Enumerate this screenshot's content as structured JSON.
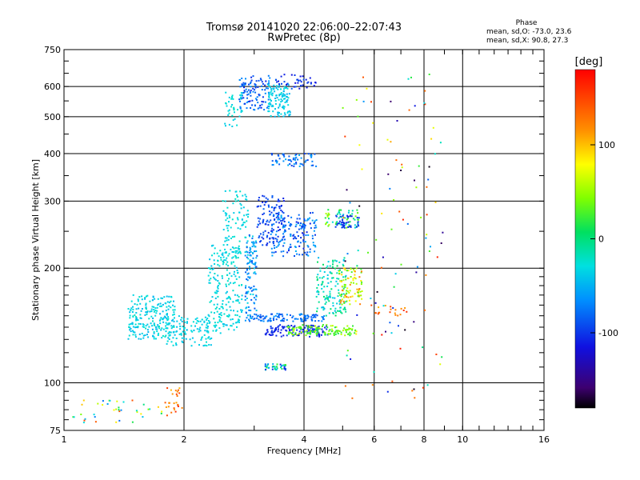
{
  "chart_data": {
    "type": "scatter",
    "title": "Tromsø 20141020 22:06:00–22:07:43",
    "subtitle": "RwPretec (8p)",
    "xlabel": "Frequency [MHz]",
    "ylabel": "Stationary phase Virtual Height [km]",
    "x_scale": "log",
    "y_scale": "log",
    "xlim": [
      1,
      16
    ],
    "ylim": [
      75,
      750
    ],
    "x_ticks": [
      1,
      2,
      4,
      6,
      8,
      10,
      16
    ],
    "x_tick_labels": [
      "1",
      "2",
      "4",
      "6",
      "8",
      "10",
      "16"
    ],
    "y_ticks": [
      75,
      100,
      200,
      300,
      400,
      500,
      600,
      750
    ],
    "y_tick_labels": [
      "75",
      "100",
      "200",
      "300",
      "400",
      "500",
      "600",
      "750"
    ],
    "grid": true,
    "colorbar": {
      "label": "[deg]",
      "range": [
        -180,
        180
      ],
      "ticks": [
        100,
        0,
        -100
      ],
      "tick_labels": [
        "100",
        "0",
        "-100"
      ]
    },
    "legend": {
      "heading": "Phase",
      "line_o": "mean, sd,O: -73.0, 23.6",
      "line_x": "mean, sd,X:  90.8, 27.3"
    },
    "clusters": [
      {
        "x": [
          1.45,
          1.9
        ],
        "y": [
          130,
          170
        ],
        "phase": [
          -50,
          -20
        ],
        "n": 220
      },
      {
        "x": [
          1.8,
          2.35
        ],
        "y": [
          125,
          150
        ],
        "phase": [
          -45,
          -25
        ],
        "n": 120
      },
      {
        "x": [
          2.3,
          2.8
        ],
        "y": [
          135,
          230
        ],
        "phase": [
          -45,
          -20
        ],
        "n": 200
      },
      {
        "x": [
          2.5,
          2.9
        ],
        "y": [
          210,
          320
        ],
        "phase": [
          -40,
          -20
        ],
        "n": 100
      },
      {
        "x": [
          2.85,
          3.05
        ],
        "y": [
          145,
          245
        ],
        "phase": [
          -90,
          -30
        ],
        "n": 120
      },
      {
        "x": [
          3.05,
          3.6
        ],
        "y": [
          230,
          310
        ],
        "phase": [
          -110,
          -80
        ],
        "n": 120
      },
      {
        "x": [
          3.3,
          4.3
        ],
        "y": [
          215,
          280
        ],
        "phase": [
          -110,
          -50
        ],
        "n": 160
      },
      {
        "x": [
          3.2,
          4.6
        ],
        "y": [
          132,
          142
        ],
        "phase": [
          -115,
          -95
        ],
        "n": 120
      },
      {
        "x": [
          3.6,
          5.4
        ],
        "y": [
          133,
          142
        ],
        "phase": [
          10,
          60
        ],
        "n": 120
      },
      {
        "x": [
          3.0,
          4.5
        ],
        "y": [
          145,
          152
        ],
        "phase": [
          -95,
          -60
        ],
        "n": 100
      },
      {
        "x": [
          4.3,
          5.1
        ],
        "y": [
          150,
          215
        ],
        "phase": [
          -50,
          10
        ],
        "n": 140
      },
      {
        "x": [
          4.9,
          5.6
        ],
        "y": [
          160,
          200
        ],
        "phase": [
          20,
          130
        ],
        "n": 90
      },
      {
        "x": [
          4.5,
          5.5
        ],
        "y": [
          255,
          285
        ],
        "phase": [
          -40,
          60
        ],
        "n": 60
      },
      {
        "x": [
          4.8,
          5.5
        ],
        "y": [
          255,
          275
        ],
        "phase": [
          -110,
          -90
        ],
        "n": 40
      },
      {
        "x": [
          2.75,
          3.3
        ],
        "y": [
          520,
          640
        ],
        "phase": [
          -110,
          -60
        ],
        "n": 110
      },
      {
        "x": [
          3.25,
          3.7
        ],
        "y": [
          500,
          610
        ],
        "phase": [
          -50,
          -25
        ],
        "n": 110
      },
      {
        "x": [
          2.5,
          2.8
        ],
        "y": [
          470,
          580
        ],
        "phase": [
          -40,
          -20
        ],
        "n": 40
      },
      {
        "x": [
          3.4,
          4.3
        ],
        "y": [
          590,
          645
        ],
        "phase": [
          -120,
          -80
        ],
        "n": 40
      },
      {
        "x": [
          3.3,
          4.3
        ],
        "y": [
          370,
          400
        ],
        "phase": [
          -100,
          -50
        ],
        "n": 60
      },
      {
        "x": [
          3.2,
          3.6
        ],
        "y": [
          108,
          112
        ],
        "phase": [
          -110,
          30
        ],
        "n": 40
      },
      {
        "x": [
          1.05,
          1.8
        ],
        "y": [
          78,
          90
        ],
        "phase": [
          -80,
          150
        ],
        "n": 40
      },
      {
        "x": [
          1.8,
          2.0
        ],
        "y": [
          82,
          97
        ],
        "phase": [
          100,
          160
        ],
        "n": 25
      },
      {
        "x": [
          5.8,
          7.3
        ],
        "y": [
          150,
          160
        ],
        "phase": [
          100,
          160
        ],
        "n": 20
      },
      {
        "x": [
          5.0,
          9.0
        ],
        "y": [
          90,
          650
        ],
        "phase": [
          -180,
          180
        ],
        "n": 110
      }
    ]
  }
}
